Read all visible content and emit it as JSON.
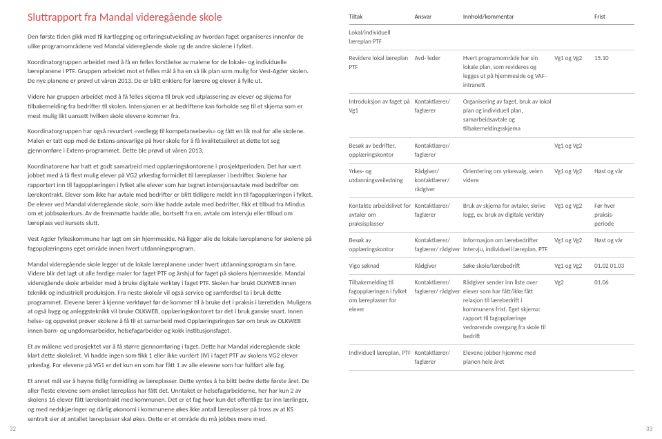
{
  "left": {
    "title": "Sluttrapport fra Mandal videregående skole",
    "paras": [
      "Den første tiden gikk med til kartlegging og erfaringsutveksling av hvordan faget organiseres innenfor de ulike programområdene ved Mandal videregående skole og de andre skolene i fylket.",
      "Koordinatorgruppen arbeidet med å få en felles forståelse av malene for de lokale- og individuelle læreplanene i PTF. Gruppen arbeidet mot et felles mål å ha en så lik plan som mulig for Vest-Agder skolen. De nye planene er prøvd ut våren 2013. De er blitt enklere for lærere og elever å fylle ut.",
      "Videre har gruppen arbeidet med å få felles skjema til bruk ved utplassering av elever og skjema for tilbakemelding fra bedrifter til skolen. Intensjonen er at bedriftene kan forholde seg til et skjema som er mest mulig likt uansett hvilken skole elevene kommer fra.",
      "Koordinatorgruppen har også revurdert «vedlegg til kompetansebevis» og fått en lik mal for alle skolene. Malen er tatt opp med de Extens-ansvarlige på hver skole for å få kvalitetssikret at dette lot seg gjennomføre i Extens-programmet. Dette ble prøvd ut våren 2013.",
      "Koordinatorene har hatt et godt samarbeid med opplæringskontorene i prosjektperioden. Det har vært jobbet med å få flest mulig elever på VG2 yrkesfag formidlet til læreplasser i bedrifter. Skolene har rapportert inn til fagopplæringen i fylket alle elever som har tegnet intensjonsavtale med bedrifter om lærekontrakt. Elever som ikke har avtale med bedrifter er blitt tidligere meldt inn til fagopplæringen i fylket. De elever ved Mandal videregående skole, som ikke hadde avtale med bedrifter, fikk et tilbud fra Mindus om et jobbsøkerkurs. Av de fremmøtte hadde alle, bortsett fra en, avtale om intervju eller tilbud om læreplass ved kursets slutt.",
      "Vest Agder fylkeskommune har lagt om sin hjemmeside. Nå ligger alle de lokale læreplanene for skolene på fagopplæringens eget område innen hvert utdanningsprogram.",
      "Mandal videregående skole legger ut de lokale læreplanene under hvert utdanningsprogram sin fane. Videre blir det lagt ut alle ferdige maler for faget PTF og årshjul for faget på skolens hjemmeside. Mandal videregående skole arbeider med å bruke digitale verktøy i faget PTF. Skolen har brukt OLKWEB innen teknikk og industriell produksjon. Fra neste skoleår vil også service og samferdsel ta i bruk dette programmet. Elevene lærer å kjenne verktøyet før de kommer til å bruke det i praksis i læretiden. Muligens at også bygg og anleggsteknikk vil bruke OLKWEB, opplæringskontoret tar det i bruk ganske snart. Innen helse- og oppvekst prøver skolene å få til et samarbeid med Opplæringsringen Sør om bruk av OLKWEB innen barn- og ungdomsarbeider, helsefagarbeider og kokk institusjonsfaget.",
      "Et av målene ved prosjektet var å få større gjennomføring i faget. Dette har Mandal videregående skole klart dette skoleåret. Vi hadde ingen som fikk 1 eller ikke vurdert (IV) i faget PTF av skolens VG2 elever yrkesfag. For elevene på VG1 er det kun en som har fått 1 av alle elevene som har fullført alle fag.",
      "Et annet mål var å høyne tidlig formidling av læreplasser. Dette syntes å ha blitt bedre dette første året. De aller fleste elevene som ønsket læreplass har fått det. Unntaket er helsefagarbeiderne, her har kun 2 av skolens 16 elever fått lærekontrakt med kommunen. Det er et fag hvor kun det offentlige tar inn lærlinger, og med nedskjæringer og dårlig økonomi i kommunene økes ikke antall læreplasser på tross av at KS sentralt sier at antallet læreplasser skal økes. Dette er et område du må jobbes mere med."
    ],
    "pagenum": "32"
  },
  "right": {
    "headers": [
      "Tiltak",
      "Ansvar",
      "Innhold/kommentar",
      "",
      "Frist"
    ],
    "rows": [
      {
        "c": [
          "Lokal/individuell læreplan PTF",
          "",
          "",
          "",
          ""
        ]
      },
      {
        "c": [
          "Revidere lokal læreplan PTF",
          "Avd- leder",
          "Hvert programområde har sin lokale plan, som revideres og legges ut på hjemmeside og VAF-intranett",
          "Vg1 og Vg2",
          "15.10"
        ]
      },
      {
        "c": [
          "Introduksjon av faget på Vg1",
          "Kontaktlærer/ faglærer",
          "Organisering av faget, bruk av lokal plan og individuell plan, samarbeidsavtale og tilbakemeldingsskjema",
          "",
          ""
        ]
      },
      {
        "c": [
          "Besøk av bedrifter, opplæringskontor",
          "Kontaktlærer/ faglærer",
          "",
          "Vg1 og Vg2",
          ""
        ]
      },
      {
        "c": [
          "Yrkes- og utdanningsveiledning",
          "Rådgiver/ kontaktlærer/ rådgiver",
          "Orientering om yrkesvalg, veien videre",
          "Vg1 og Vg2",
          "Høst og vår"
        ]
      },
      {
        "c": [
          "Kontakte arbeidslivet for avtaler om praksisplasser",
          "Kontaktlærer/ faglærer",
          "Bruk av skjema for avtaler, skrive logg, ev. bruk av digitale verktøy",
          "Vg1 og Vg2",
          "Før hver praksis-periode"
        ]
      },
      {
        "c": [
          "Besøk av opplæringskontor",
          "Kontaktlærer/ faglærer/ rådgiver",
          "Informasjon om lærebedrifter Intervju, individuell læreplan, PTF",
          "Vg1 og Vg2",
          "Høst og vår"
        ]
      },
      {
        "c": [
          "Vigo søknad",
          "Rådgiver",
          "Søke skole/lærebedrift",
          "Vg1 og Vg2",
          "01.02 01.03"
        ]
      },
      {
        "c": [
          "Tilbakemelding til fagopplæringen i fylket om læreplasser for elever",
          "Kontaktlærer/ faglærer/ rådgiver",
          "Rådgiver sender inn liste over elever som har fått/ikke fått relasjon til lærebedrift i kommunens frist. Eget skjema: rapport til fagopplæringe vedrørende overgang fra skole til bedrift",
          "Vg2",
          "01.06"
        ]
      },
      {
        "c": [
          "Individuell læreplan, PTF",
          "Kontaktlærer/ faglærer",
          "Elevene jobber hjemme med planen hele året",
          "",
          ""
        ]
      }
    ],
    "pagenum": "33"
  }
}
